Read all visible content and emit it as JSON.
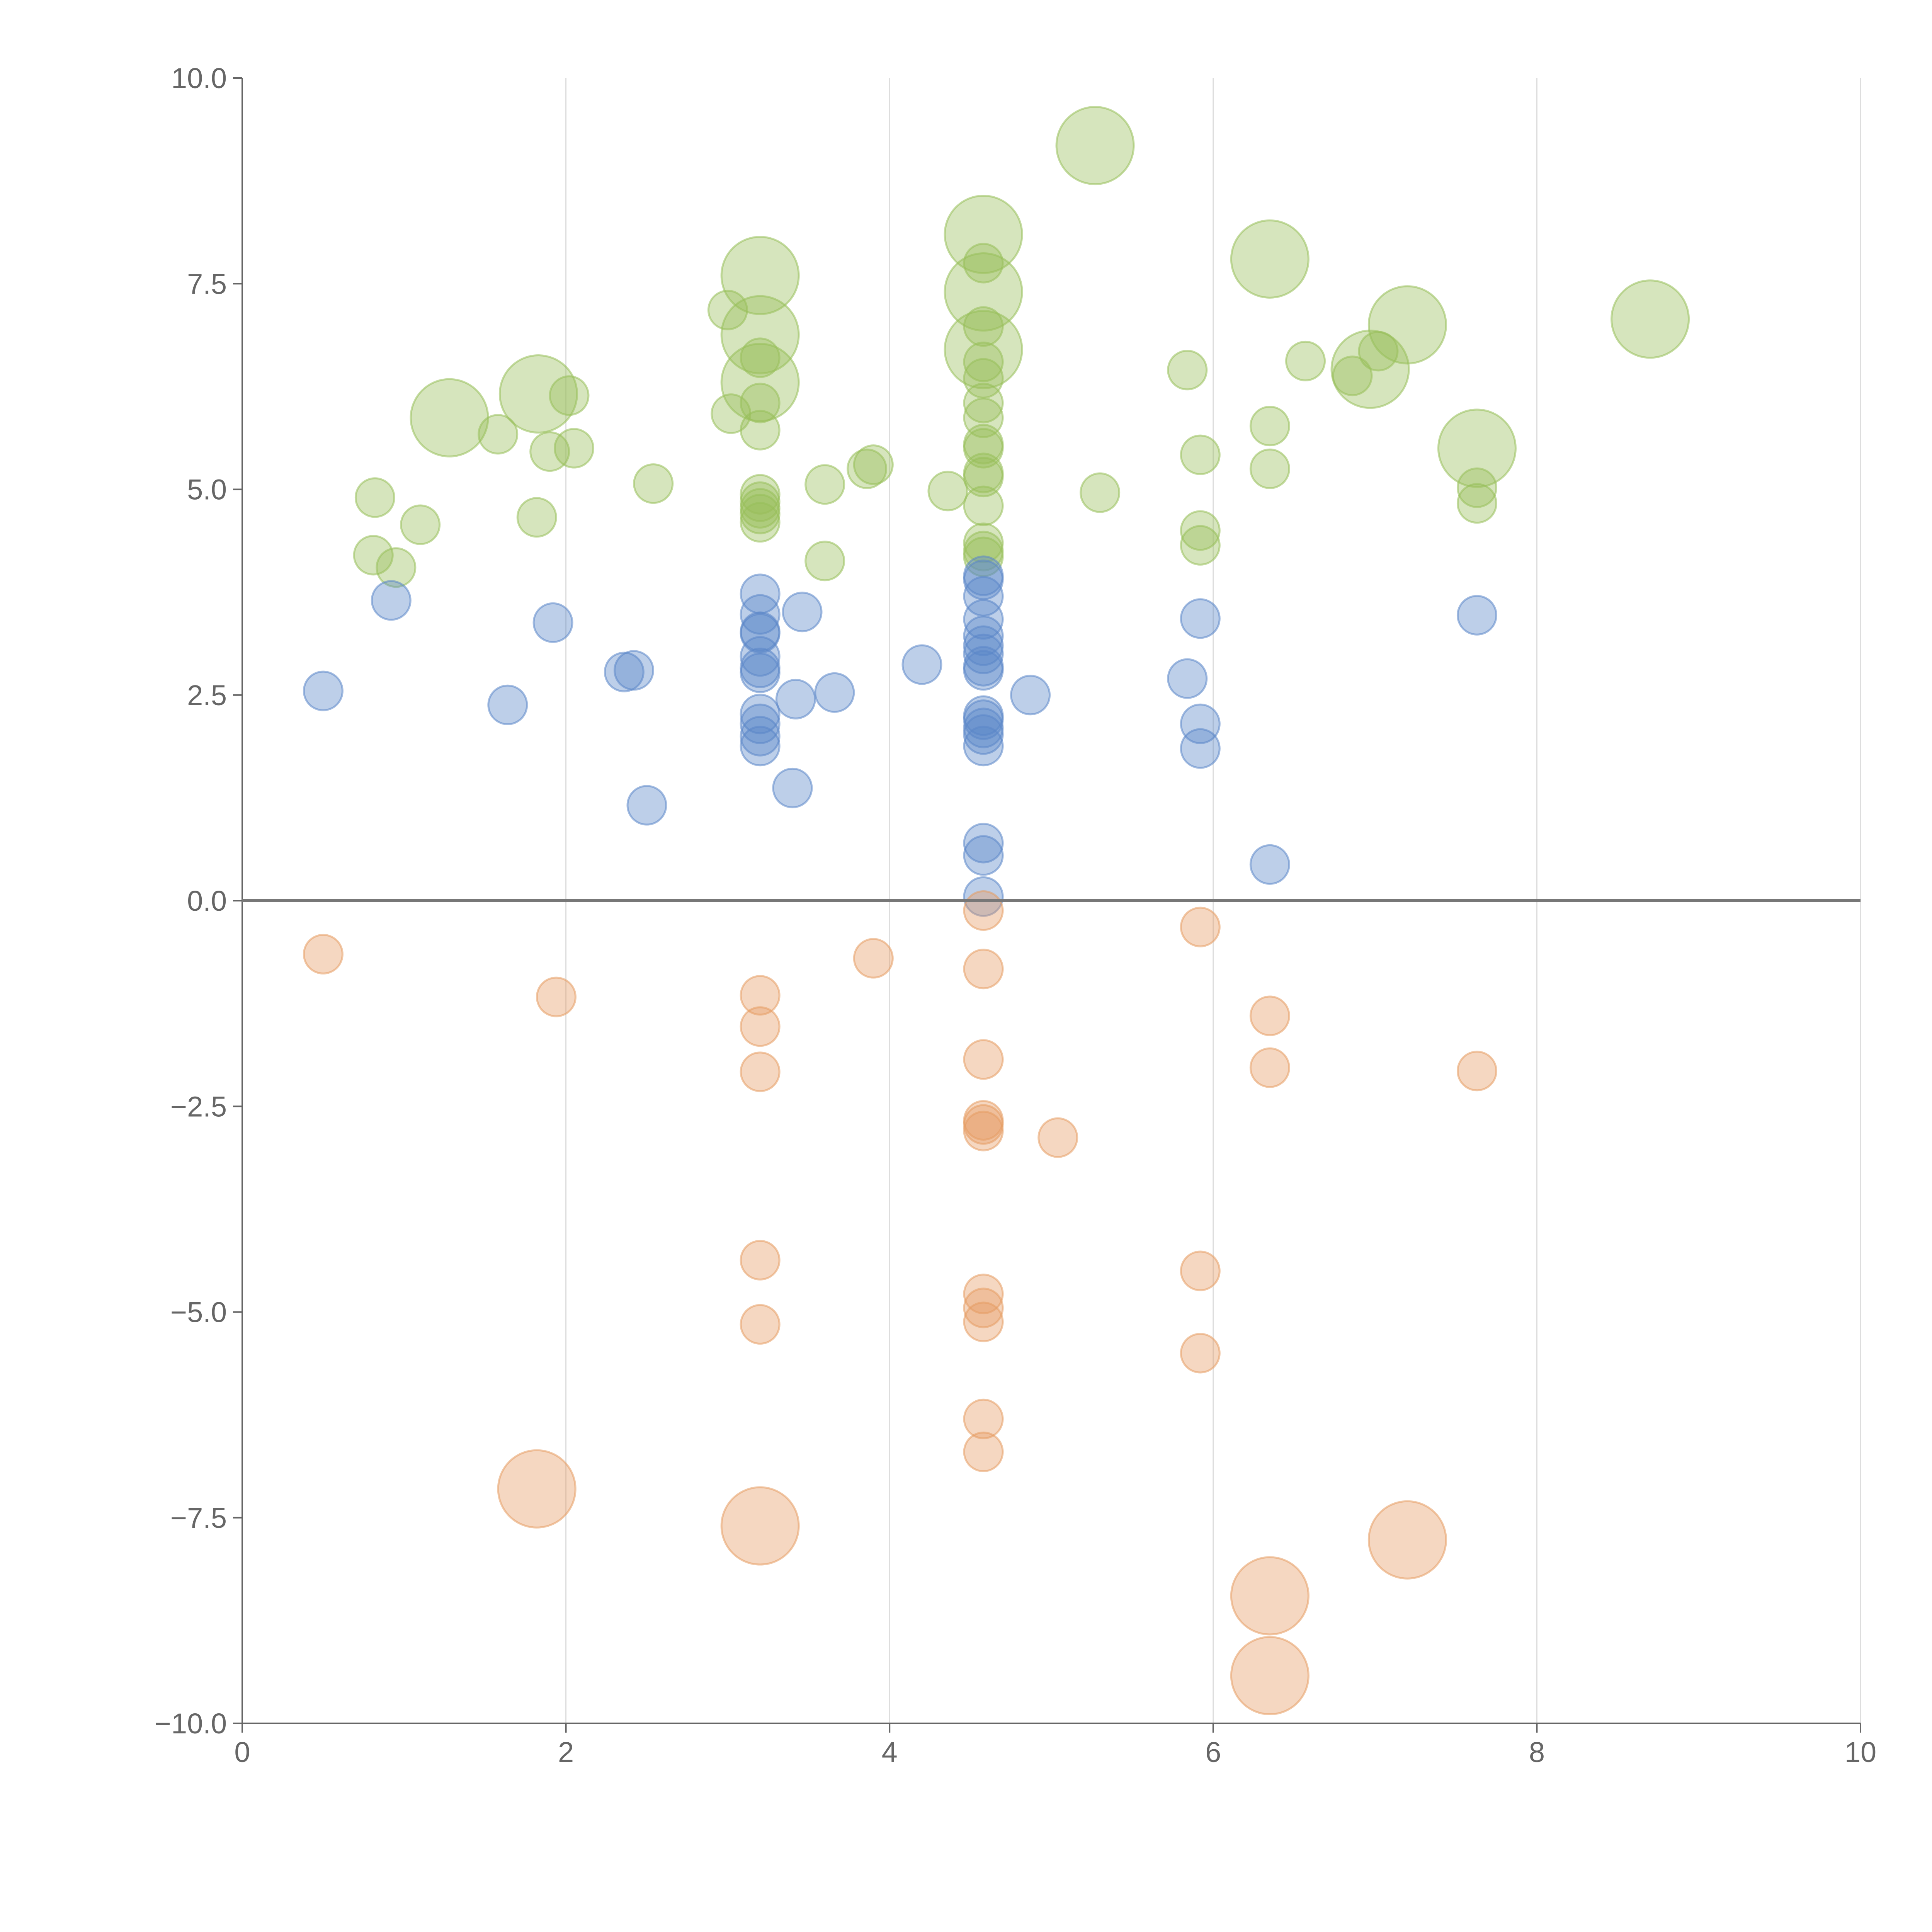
{
  "chart_data": {
    "type": "scatter",
    "subtype": "bubble",
    "title": "",
    "xlabel": "",
    "ylabel": "",
    "xlim": [
      0,
      10
    ],
    "ylim": [
      -10,
      10
    ],
    "x_ticks": [
      0,
      2,
      4,
      6,
      8,
      10
    ],
    "x_tick_labels": [
      "0",
      "2",
      "4",
      "6",
      "8",
      "10"
    ],
    "y_ticks": [
      10,
      7.5,
      5,
      2.5,
      0,
      -2.5,
      -5,
      -7.5,
      -10
    ],
    "y_tick_labels": [
      "10.0",
      "7.5",
      "5.0",
      "2.5",
      "0.0",
      "−2.5",
      "−5.0",
      "−7.5",
      "−10.0"
    ],
    "grid": "vertical",
    "zero_line": true,
    "series": [
      {
        "name": "green",
        "color": "#98bf5a",
        "points": [
          {
            "x": 0.82,
            "y": 4.9,
            "size": 1
          },
          {
            "x": 0.81,
            "y": 4.2,
            "size": 1
          },
          {
            "x": 0.95,
            "y": 4.05,
            "size": 1
          },
          {
            "x": 1.1,
            "y": 4.57,
            "size": 1
          },
          {
            "x": 1.28,
            "y": 5.87,
            "size": 3
          },
          {
            "x": 1.58,
            "y": 5.67,
            "size": 1
          },
          {
            "x": 1.83,
            "y": 6.16,
            "size": 3
          },
          {
            "x": 1.82,
            "y": 4.66,
            "size": 1
          },
          {
            "x": 1.9,
            "y": 5.46,
            "size": 1
          },
          {
            "x": 2.02,
            "y": 6.14,
            "size": 1
          },
          {
            "x": 2.05,
            "y": 5.5,
            "size": 1
          },
          {
            "x": 2.54,
            "y": 5.07,
            "size": 1
          },
          {
            "x": 3.0,
            "y": 7.18,
            "size": 1
          },
          {
            "x": 3.02,
            "y": 5.92,
            "size": 1
          },
          {
            "x": 3.2,
            "y": 7.6,
            "size": 3
          },
          {
            "x": 3.2,
            "y": 6.88,
            "size": 3
          },
          {
            "x": 3.2,
            "y": 6.6,
            "size": 1
          },
          {
            "x": 3.2,
            "y": 6.3,
            "size": 3
          },
          {
            "x": 3.2,
            "y": 6.05,
            "size": 1
          },
          {
            "x": 3.2,
            "y": 5.72,
            "size": 1
          },
          {
            "x": 3.2,
            "y": 4.94,
            "size": 1
          },
          {
            "x": 3.2,
            "y": 4.85,
            "size": 1
          },
          {
            "x": 3.2,
            "y": 4.77,
            "size": 1
          },
          {
            "x": 3.2,
            "y": 4.7,
            "size": 1
          },
          {
            "x": 3.2,
            "y": 4.6,
            "size": 1
          },
          {
            "x": 3.6,
            "y": 5.06,
            "size": 1
          },
          {
            "x": 3.6,
            "y": 4.13,
            "size": 1
          },
          {
            "x": 3.86,
            "y": 5.25,
            "size": 1
          },
          {
            "x": 3.9,
            "y": 5.3,
            "size": 1
          },
          {
            "x": 4.36,
            "y": 4.98,
            "size": 1
          },
          {
            "x": 4.58,
            "y": 8.1,
            "size": 3
          },
          {
            "x": 4.58,
            "y": 7.75,
            "size": 1
          },
          {
            "x": 4.58,
            "y": 7.4,
            "size": 3
          },
          {
            "x": 4.58,
            "y": 6.98,
            "size": 1
          },
          {
            "x": 4.58,
            "y": 6.7,
            "size": 3
          },
          {
            "x": 4.58,
            "y": 6.55,
            "size": 1
          },
          {
            "x": 4.58,
            "y": 6.35,
            "size": 1
          },
          {
            "x": 4.58,
            "y": 6.05,
            "size": 1
          },
          {
            "x": 4.58,
            "y": 5.87,
            "size": 1
          },
          {
            "x": 4.58,
            "y": 5.55,
            "size": 1
          },
          {
            "x": 4.58,
            "y": 5.5,
            "size": 1
          },
          {
            "x": 4.58,
            "y": 5.2,
            "size": 1
          },
          {
            "x": 4.58,
            "y": 5.15,
            "size": 1
          },
          {
            "x": 4.58,
            "y": 4.8,
            "size": 1
          },
          {
            "x": 4.58,
            "y": 4.35,
            "size": 1
          },
          {
            "x": 4.58,
            "y": 4.25,
            "size": 1
          },
          {
            "x": 4.58,
            "y": 4.18,
            "size": 1
          },
          {
            "x": 5.27,
            "y": 9.18,
            "size": 3
          },
          {
            "x": 5.3,
            "y": 4.96,
            "size": 1
          },
          {
            "x": 5.84,
            "y": 6.45,
            "size": 1
          },
          {
            "x": 5.92,
            "y": 5.42,
            "size": 1
          },
          {
            "x": 5.92,
            "y": 4.5,
            "size": 1
          },
          {
            "x": 5.92,
            "y": 4.32,
            "size": 1
          },
          {
            "x": 6.35,
            "y": 7.8,
            "size": 3
          },
          {
            "x": 6.35,
            "y": 5.77,
            "size": 1
          },
          {
            "x": 6.35,
            "y": 5.25,
            "size": 1
          },
          {
            "x": 6.57,
            "y": 6.56,
            "size": 1
          },
          {
            "x": 6.86,
            "y": 6.38,
            "size": 1
          },
          {
            "x": 6.97,
            "y": 6.46,
            "size": 3
          },
          {
            "x": 7.02,
            "y": 6.68,
            "size": 1
          },
          {
            "x": 7.2,
            "y": 7.0,
            "size": 3
          },
          {
            "x": 7.63,
            "y": 5.5,
            "size": 3
          },
          {
            "x": 7.63,
            "y": 5.02,
            "size": 1
          },
          {
            "x": 7.63,
            "y": 4.83,
            "size": 1
          },
          {
            "x": 8.7,
            "y": 7.07,
            "size": 3
          }
        ]
      },
      {
        "name": "blue",
        "color": "#5b86c8",
        "points": [
          {
            "x": 0.5,
            "y": 2.55,
            "size": 1
          },
          {
            "x": 0.92,
            "y": 3.65,
            "size": 1
          },
          {
            "x": 1.64,
            "y": 2.38,
            "size": 1
          },
          {
            "x": 1.92,
            "y": 3.38,
            "size": 1
          },
          {
            "x": 2.36,
            "y": 2.78,
            "size": 1
          },
          {
            "x": 2.42,
            "y": 2.8,
            "size": 1
          },
          {
            "x": 2.5,
            "y": 1.16,
            "size": 1
          },
          {
            "x": 3.2,
            "y": 3.73,
            "size": 1
          },
          {
            "x": 3.2,
            "y": 3.48,
            "size": 1
          },
          {
            "x": 3.2,
            "y": 3.27,
            "size": 1
          },
          {
            "x": 3.2,
            "y": 3.25,
            "size": 1
          },
          {
            "x": 3.2,
            "y": 2.97,
            "size": 1
          },
          {
            "x": 3.2,
            "y": 2.83,
            "size": 1
          },
          {
            "x": 3.2,
            "y": 2.77,
            "size": 1
          },
          {
            "x": 3.2,
            "y": 2.27,
            "size": 1
          },
          {
            "x": 3.2,
            "y": 2.15,
            "size": 1
          },
          {
            "x": 3.2,
            "y": 2.0,
            "size": 1
          },
          {
            "x": 3.2,
            "y": 1.88,
            "size": 1
          },
          {
            "x": 3.4,
            "y": 1.37,
            "size": 1
          },
          {
            "x": 3.42,
            "y": 2.45,
            "size": 1
          },
          {
            "x": 3.46,
            "y": 3.51,
            "size": 1
          },
          {
            "x": 3.66,
            "y": 2.53,
            "size": 1
          },
          {
            "x": 4.2,
            "y": 2.87,
            "size": 1
          },
          {
            "x": 4.58,
            "y": 3.95,
            "size": 1
          },
          {
            "x": 4.58,
            "y": 3.9,
            "size": 1
          },
          {
            "x": 4.58,
            "y": 3.7,
            "size": 1
          },
          {
            "x": 4.58,
            "y": 3.42,
            "size": 1
          },
          {
            "x": 4.58,
            "y": 3.22,
            "size": 1
          },
          {
            "x": 4.58,
            "y": 3.1,
            "size": 1
          },
          {
            "x": 4.58,
            "y": 3.0,
            "size": 1
          },
          {
            "x": 4.58,
            "y": 2.85,
            "size": 1
          },
          {
            "x": 4.58,
            "y": 2.8,
            "size": 1
          },
          {
            "x": 4.58,
            "y": 2.25,
            "size": 1
          },
          {
            "x": 4.58,
            "y": 2.2,
            "size": 1
          },
          {
            "x": 4.58,
            "y": 2.1,
            "size": 1
          },
          {
            "x": 4.58,
            "y": 2.02,
            "size": 1
          },
          {
            "x": 4.58,
            "y": 1.88,
            "size": 1
          },
          {
            "x": 4.58,
            "y": 0.7,
            "size": 1
          },
          {
            "x": 4.58,
            "y": 0.55,
            "size": 1
          },
          {
            "x": 4.58,
            "y": 0.05,
            "size": 1
          },
          {
            "x": 4.87,
            "y": 2.5,
            "size": 1
          },
          {
            "x": 5.84,
            "y": 2.7,
            "size": 1
          },
          {
            "x": 5.92,
            "y": 3.43,
            "size": 1
          },
          {
            "x": 5.92,
            "y": 2.15,
            "size": 1
          },
          {
            "x": 5.92,
            "y": 1.85,
            "size": 1
          },
          {
            "x": 6.35,
            "y": 0.44,
            "size": 1
          },
          {
            "x": 7.63,
            "y": 3.47,
            "size": 1
          }
        ]
      },
      {
        "name": "orange",
        "color": "#e59c63",
        "points": [
          {
            "x": 0.5,
            "y": -0.65,
            "size": 1
          },
          {
            "x": 1.82,
            "y": -7.15,
            "size": 3
          },
          {
            "x": 1.94,
            "y": -1.17,
            "size": 1
          },
          {
            "x": 3.2,
            "y": -1.15,
            "size": 1
          },
          {
            "x": 3.2,
            "y": -1.53,
            "size": 1
          },
          {
            "x": 3.2,
            "y": -2.08,
            "size": 1
          },
          {
            "x": 3.2,
            "y": -4.37,
            "size": 1
          },
          {
            "x": 3.2,
            "y": -5.15,
            "size": 1
          },
          {
            "x": 3.2,
            "y": -7.6,
            "size": 3
          },
          {
            "x": 3.9,
            "y": -0.7,
            "size": 1
          },
          {
            "x": 4.58,
            "y": -0.12,
            "size": 1
          },
          {
            "x": 4.58,
            "y": -0.83,
            "size": 1
          },
          {
            "x": 4.58,
            "y": -1.93,
            "size": 1
          },
          {
            "x": 4.58,
            "y": -2.67,
            "size": 1
          },
          {
            "x": 4.58,
            "y": -2.72,
            "size": 1
          },
          {
            "x": 4.58,
            "y": -2.8,
            "size": 1
          },
          {
            "x": 4.58,
            "y": -4.78,
            "size": 1
          },
          {
            "x": 4.58,
            "y": -4.95,
            "size": 1
          },
          {
            "x": 4.58,
            "y": -5.12,
            "size": 1
          },
          {
            "x": 4.58,
            "y": -6.3,
            "size": 1
          },
          {
            "x": 4.58,
            "y": -6.7,
            "size": 1
          },
          {
            "x": 5.04,
            "y": -2.88,
            "size": 1
          },
          {
            "x": 5.92,
            "y": -0.32,
            "size": 1
          },
          {
            "x": 5.92,
            "y": -4.5,
            "size": 1
          },
          {
            "x": 5.92,
            "y": -5.5,
            "size": 1
          },
          {
            "x": 6.35,
            "y": -1.4,
            "size": 1
          },
          {
            "x": 6.35,
            "y": -2.03,
            "size": 1
          },
          {
            "x": 6.35,
            "y": -8.45,
            "size": 3
          },
          {
            "x": 6.35,
            "y": -9.42,
            "size": 3
          },
          {
            "x": 7.2,
            "y": -7.77,
            "size": 3
          },
          {
            "x": 7.63,
            "y": -2.07,
            "size": 1
          }
        ]
      }
    ]
  }
}
